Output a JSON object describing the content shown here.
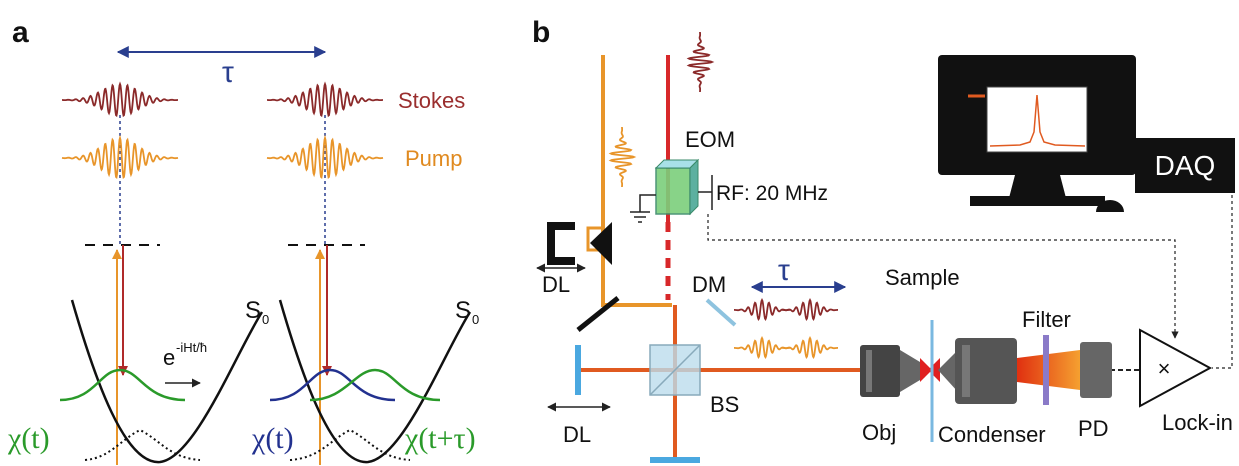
{
  "panel_a": {
    "label": "a",
    "delay": "τ",
    "stokes": "Stokes",
    "pump": "Pump",
    "propagator_base": "e",
    "propagator_exponent": "-iHt/ħ",
    "state_left": "S",
    "state_left_sub": "0",
    "state_right": "S",
    "state_right_sub": "0",
    "wavepacket_1": "χ(t)",
    "wavepacket_2": "χ(t)",
    "wavepacket_3": "χ(t+τ)"
  },
  "panel_b": {
    "label": "b",
    "eom": "EOM",
    "rf": "RF: 20 MHz",
    "daq": "DAQ",
    "delay_line_1": "DL",
    "delay_line_2": "DL",
    "dichroic": "DM",
    "delay": "τ",
    "sample": "Sample",
    "filter": "Filter",
    "beam_splitter": "BS",
    "objective": "Obj",
    "condenser": "Condenser",
    "photodiode": "PD",
    "lockin": "Lock-in",
    "multiply": "×"
  }
}
